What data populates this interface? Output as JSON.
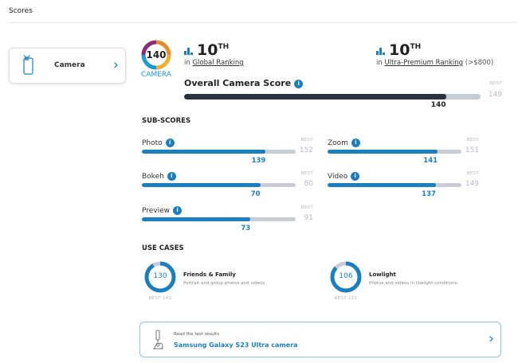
{
  "header": {
    "title": "Scores"
  },
  "category_card": {
    "label": "Camera"
  },
  "badge": {
    "score": "140",
    "label": "CAMERA"
  },
  "global_rank": {
    "rank": "10",
    "suffix": "TH",
    "prefix": "in",
    "link": "Global Ranking"
  },
  "segment_rank": {
    "rank": "10",
    "suffix": "TH",
    "prefix": "in",
    "link": "Ultra-Premium Ranking",
    "extra": "(>$800)"
  },
  "overall": {
    "label": "Overall Camera Score",
    "score": 140,
    "best_label": "BEST",
    "best": 149
  },
  "subscores": {
    "heading": "SUB-SCORES",
    "items": [
      {
        "label": "Photo",
        "score": 139,
        "best": 152
      },
      {
        "label": "Zoom",
        "score": 141,
        "best": 151
      },
      {
        "label": "Bokeh",
        "score": 70,
        "best": 80
      },
      {
        "label": "Video",
        "score": 137,
        "best": 149
      },
      {
        "label": "Preview",
        "score": 73,
        "best": 91
      }
    ],
    "best_label": "BEST"
  },
  "use_cases": {
    "heading": "USE CASES",
    "items": [
      {
        "title": "Friends & Family",
        "desc": "Portrait and group photos and videos",
        "score": 130,
        "best": 142,
        "best_text": "BEST 142"
      },
      {
        "title": "Lowlight",
        "desc": "Photos and videos in lowlight conditions",
        "score": 106,
        "best": 122,
        "best_text": "BEST 122"
      }
    ]
  },
  "test_link": {
    "caption": "Read the test results",
    "title": "Samsung Galaxy S23 Ultra camera"
  },
  "colors": {
    "accent": "#1b7fbf",
    "dark": "#2b3240",
    "track": "#c8cdd8"
  }
}
